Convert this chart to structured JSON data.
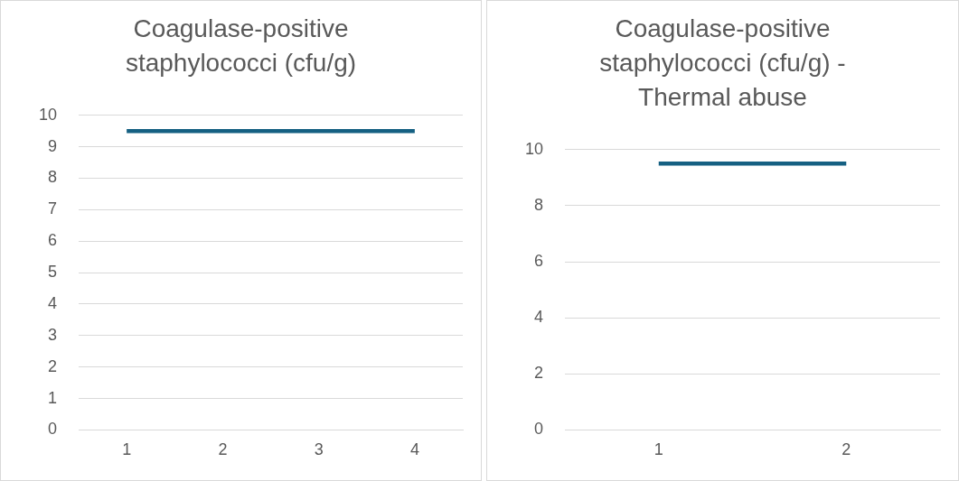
{
  "chart_data": [
    {
      "type": "line",
      "title": "Coagulase-positive staphylococci (cfu/g)",
      "categories": [
        "1",
        "2",
        "3",
        "4"
      ],
      "series": [
        {
          "color": "#156082",
          "values": [
            9.5,
            9.5,
            9.5,
            9.5
          ]
        }
      ],
      "ylim": [
        0,
        10
      ],
      "yticks": [
        0,
        1,
        2,
        3,
        4,
        5,
        6,
        7,
        8,
        9,
        10
      ],
      "grid": "y",
      "legend": false,
      "marker": "none"
    },
    {
      "type": "line",
      "title": "Coagulase-positive staphylococci (cfu/g) - Thermal abuse",
      "categories": [
        "1",
        "2"
      ],
      "series": [
        {
          "color": "#156082",
          "values": [
            9.5,
            9.5
          ]
        }
      ],
      "ylim": [
        0,
        10
      ],
      "yticks": [
        0,
        2,
        4,
        6,
        8,
        10
      ],
      "grid": "y",
      "legend": false,
      "marker": "none"
    }
  ]
}
